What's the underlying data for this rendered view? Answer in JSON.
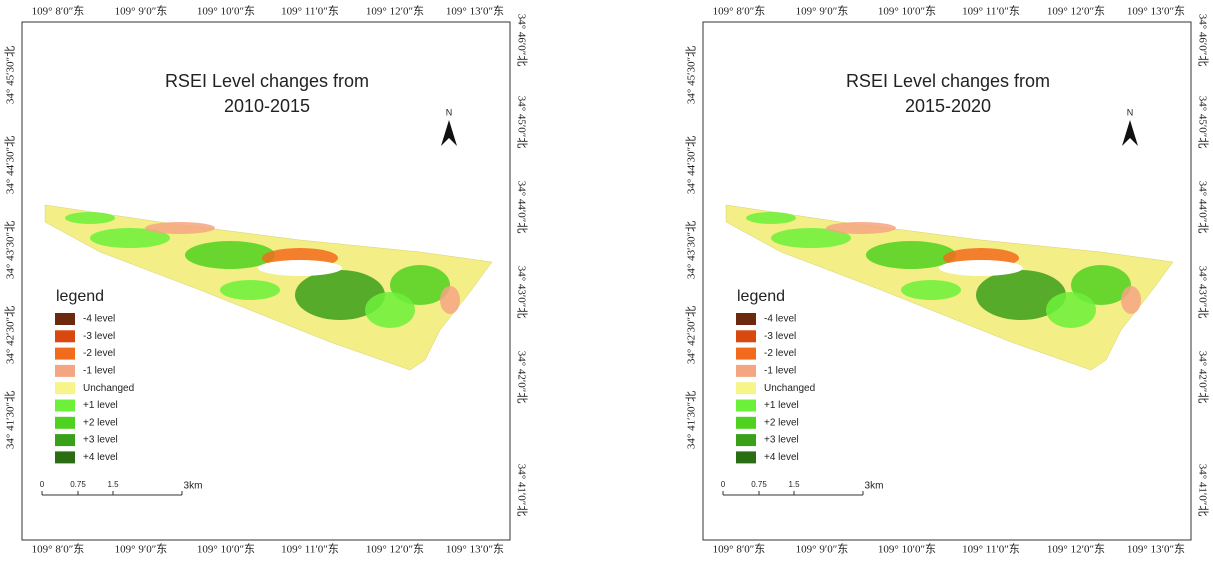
{
  "panels": [
    {
      "title": [
        "RSEI Level changes from",
        "2010-2015"
      ],
      "top_labels": [
        "109° 8′0″东",
        "109° 9′0″东",
        "109° 10′0″东",
        "109° 11′0″东",
        "109° 12′0″东",
        "109° 13′0″东"
      ],
      "bottom_labels": [
        "109° 8′0″东",
        "109° 9′0″东",
        "109° 10′0″东",
        "109° 11′0″东",
        "109° 12′0″东",
        "109° 13′0″东"
      ],
      "left_labels": [
        "34° 45′30″北",
        "34° 44′30″北",
        "34° 43′30″北",
        "34° 42′30″北",
        "34° 41′30″北"
      ],
      "right_labels": [
        "34° 46′0″北",
        "34° 45′0″北",
        "34° 44′0″北",
        "34° 43′0″北",
        "34° 42′0″北",
        "34° 41′0″北"
      ],
      "north": "N",
      "legend": {
        "title": "legend",
        "items": [
          {
            "label": "-4 level",
            "color": "#6b2a0e"
          },
          {
            "label": "-3 level",
            "color": "#d9480f"
          },
          {
            "label": "-2 level",
            "color": "#f26b1d"
          },
          {
            "label": "-1 level",
            "color": "#f4a582"
          },
          {
            "label": "Unchanged",
            "color": "#f7f58a"
          },
          {
            "label": "+1 level",
            "color": "#6cf03a"
          },
          {
            "label": "+2 level",
            "color": "#4fd11f"
          },
          {
            "label": "+3 level",
            "color": "#3aa01a"
          },
          {
            "label": "+4 level",
            "color": "#2a6e14"
          }
        ]
      },
      "scale_bar": [
        "0",
        "0.75",
        "1.5",
        "3km"
      ]
    },
    {
      "title": [
        "RSEI Level changes from",
        "2015-2020"
      ],
      "top_labels": [
        "109° 8′0″东",
        "109° 9′0″东",
        "109° 10′0″东",
        "109° 11′0″东",
        "109° 12′0″东",
        "109° 13′0″东"
      ],
      "bottom_labels": [
        "109° 8′0″东",
        "109° 9′0″东",
        "109° 10′0″东",
        "109° 11′0″东",
        "109° 12′0″东",
        "109° 13′0″东"
      ],
      "left_labels": [
        "34° 45′30″北",
        "34° 44′30″北",
        "34° 43′30″北",
        "34° 42′30″北",
        "34° 41′30″北"
      ],
      "right_labels": [
        "34° 46′0″北",
        "34° 45′0″北",
        "34° 44′0″北",
        "34° 43′0″北",
        "34° 42′0″北",
        "34° 41′0″北"
      ],
      "north": "N",
      "legend": {
        "title": "legend",
        "items": [
          {
            "label": "-4 level",
            "color": "#6b2a0e"
          },
          {
            "label": "-3 level",
            "color": "#d9480f"
          },
          {
            "label": "-2 level",
            "color": "#f26b1d"
          },
          {
            "label": "-1 level",
            "color": "#f4a582"
          },
          {
            "label": "Unchanged",
            "color": "#f7f58a"
          },
          {
            "label": "+1 level",
            "color": "#6cf03a"
          },
          {
            "label": "+2 level",
            "color": "#4fd11f"
          },
          {
            "label": "+3 level",
            "color": "#3aa01a"
          },
          {
            "label": "+4 level",
            "color": "#2a6e14"
          }
        ]
      },
      "scale_bar": [
        "0",
        "0.75",
        "1.5",
        "3km"
      ]
    }
  ]
}
